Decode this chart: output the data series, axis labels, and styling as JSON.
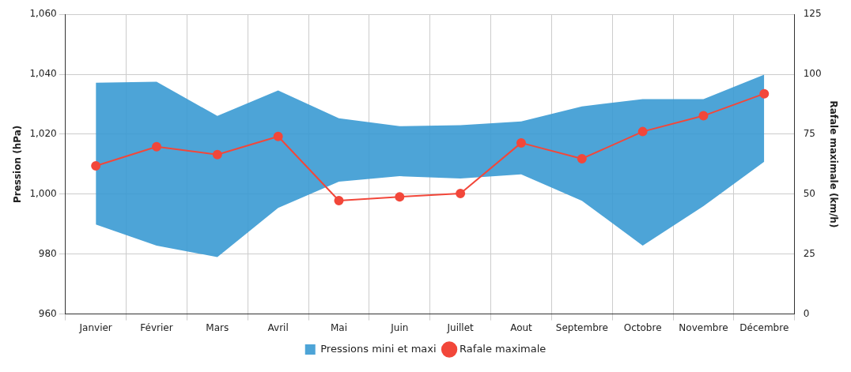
{
  "chart_data": {
    "type": "line",
    "categories": [
      "Janvier",
      "Février",
      "Mars",
      "Avril",
      "Mai",
      "Juin",
      "Juillet",
      "Aout",
      "Septembre",
      "Octobre",
      "Novembre",
      "Décembre"
    ],
    "series": [
      {
        "name": "Pressions mini et maxi",
        "type": "area",
        "color": "#3a9ad3",
        "values": [
          null,
          null,
          null,
          null,
          null,
          null,
          null,
          null,
          null,
          null,
          null,
          null
        ],
        "lower": [
          989.9,
          982.8,
          979.0,
          995.4,
          1004.2,
          1006.0,
          1005.2,
          1006.6,
          997.8,
          982.8,
          996.0,
          1010.8
        ],
        "upper": [
          1037.2,
          1037.5,
          1026.1,
          1034.6,
          1025.3,
          1022.7,
          1023.0,
          1024.3,
          1029.3,
          1031.7,
          1031.7,
          1039.9
        ]
      },
      {
        "name": "Rafale maximale",
        "type": "line",
        "axis": "y2",
        "color": "#f2473a",
        "marker": "circle",
        "values": [
          61.8,
          69.8,
          66.5,
          74.1,
          47.3,
          48.9,
          50.3,
          71.4,
          64.8,
          76.1,
          82.7,
          91.9
        ]
      }
    ],
    "ylabel": "Pression (hPa)",
    "y2label": "Rafale maximale (km/h)",
    "ylim": [
      960,
      1060
    ],
    "yticks": [
      960,
      980,
      {
        "value": 1000,
        "label": "1,000"
      },
      {
        "value": 1020,
        "label": "1,020"
      },
      {
        "value": 1040,
        "label": "1,040"
      },
      {
        "value": 1060,
        "label": "1,060"
      }
    ],
    "y2lim": [
      0,
      125
    ],
    "y2ticks": [
      0,
      25,
      50,
      75,
      100,
      125
    ],
    "grid": true,
    "legend": "bottom"
  }
}
